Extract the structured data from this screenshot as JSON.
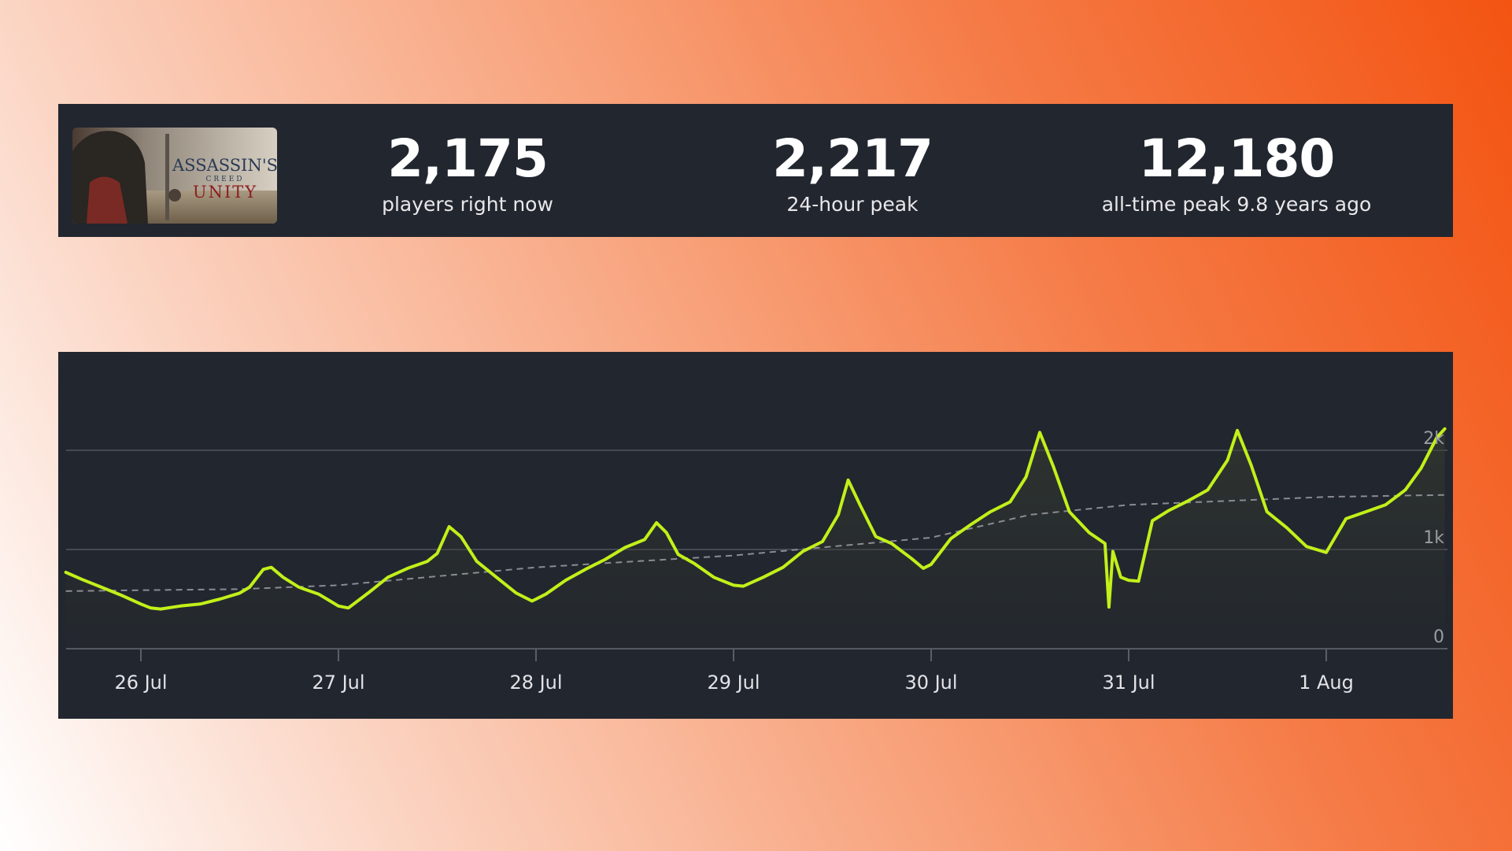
{
  "stats": {
    "game_logo_text_line1": "ASSASSIN'S",
    "game_logo_text_line2": "CREED",
    "game_logo_text_line3": "UNITY",
    "current_value": "2,175",
    "current_label": "players right now",
    "peak24_value": "2,217",
    "peak24_label": "24-hour peak",
    "alltime_value": "12,180",
    "alltime_label": "all-time peak 9.8 years ago"
  },
  "colors": {
    "panel_bg": "#22262f",
    "line": "#c2f019",
    "average_line": "#8a8c92",
    "grid": "#464a54"
  },
  "chart_data": {
    "type": "line",
    "title": "",
    "xlabel": "",
    "ylabel": "",
    "ylim": [
      0,
      2200
    ],
    "x_ticks": [
      "26 Jul",
      "27 Jul",
      "28 Jul",
      "29 Jul",
      "30 Jul",
      "31 Jul",
      "1 Aug"
    ],
    "y_ticks": [
      {
        "value": 0,
        "label": "0"
      },
      {
        "value": 1000,
        "label": "1k"
      },
      {
        "value": 2000,
        "label": "2k"
      }
    ],
    "x_range_days": [
      -0.38,
      6.6
    ],
    "series": [
      {
        "style": "main",
        "points": [
          [
            -0.38,
            770
          ],
          [
            -0.3,
            700
          ],
          [
            -0.2,
            620
          ],
          [
            -0.1,
            540
          ],
          [
            0.0,
            450
          ],
          [
            0.05,
            410
          ],
          [
            0.1,
            400
          ],
          [
            0.2,
            430
          ],
          [
            0.3,
            450
          ],
          [
            0.4,
            500
          ],
          [
            0.5,
            560
          ],
          [
            0.55,
            620
          ],
          [
            0.62,
            800
          ],
          [
            0.66,
            820
          ],
          [
            0.72,
            720
          ],
          [
            0.8,
            620
          ],
          [
            0.9,
            550
          ],
          [
            1.0,
            430
          ],
          [
            1.05,
            410
          ],
          [
            1.15,
            560
          ],
          [
            1.25,
            720
          ],
          [
            1.35,
            810
          ],
          [
            1.45,
            880
          ],
          [
            1.5,
            960
          ],
          [
            1.56,
            1230
          ],
          [
            1.62,
            1130
          ],
          [
            1.7,
            880
          ],
          [
            1.8,
            720
          ],
          [
            1.9,
            560
          ],
          [
            1.98,
            480
          ],
          [
            2.05,
            550
          ],
          [
            2.15,
            690
          ],
          [
            2.25,
            800
          ],
          [
            2.35,
            900
          ],
          [
            2.45,
            1020
          ],
          [
            2.55,
            1100
          ],
          [
            2.61,
            1270
          ],
          [
            2.66,
            1170
          ],
          [
            2.72,
            950
          ],
          [
            2.8,
            860
          ],
          [
            2.9,
            720
          ],
          [
            3.0,
            640
          ],
          [
            3.05,
            630
          ],
          [
            3.15,
            720
          ],
          [
            3.25,
            820
          ],
          [
            3.35,
            980
          ],
          [
            3.45,
            1080
          ],
          [
            3.53,
            1350
          ],
          [
            3.58,
            1700
          ],
          [
            3.64,
            1450
          ],
          [
            3.72,
            1130
          ],
          [
            3.8,
            1060
          ],
          [
            3.9,
            910
          ],
          [
            3.96,
            810
          ],
          [
            4.0,
            850
          ],
          [
            4.1,
            1110
          ],
          [
            4.2,
            1250
          ],
          [
            4.3,
            1380
          ],
          [
            4.4,
            1480
          ],
          [
            4.48,
            1730
          ],
          [
            4.55,
            2180
          ],
          [
            4.62,
            1830
          ],
          [
            4.7,
            1380
          ],
          [
            4.8,
            1170
          ],
          [
            4.88,
            1060
          ],
          [
            4.9,
            420
          ],
          [
            4.92,
            980
          ],
          [
            4.96,
            720
          ],
          [
            5.0,
            690
          ],
          [
            5.05,
            680
          ],
          [
            5.12,
            1290
          ],
          [
            5.2,
            1390
          ],
          [
            5.3,
            1490
          ],
          [
            5.4,
            1600
          ],
          [
            5.5,
            1900
          ],
          [
            5.55,
            2200
          ],
          [
            5.62,
            1850
          ],
          [
            5.7,
            1380
          ],
          [
            5.8,
            1220
          ],
          [
            5.9,
            1030
          ],
          [
            6.0,
            970
          ],
          [
            6.1,
            1310
          ],
          [
            6.2,
            1380
          ],
          [
            6.3,
            1450
          ],
          [
            6.4,
            1600
          ],
          [
            6.48,
            1820
          ],
          [
            6.56,
            2130
          ],
          [
            6.6,
            2217
          ]
        ]
      },
      {
        "style": "average",
        "points": [
          [
            -0.38,
            580
          ],
          [
            0.0,
            590
          ],
          [
            0.5,
            600
          ],
          [
            1.0,
            640
          ],
          [
            1.5,
            730
          ],
          [
            2.0,
            820
          ],
          [
            2.5,
            880
          ],
          [
            3.0,
            940
          ],
          [
            3.5,
            1030
          ],
          [
            4.0,
            1120
          ],
          [
            4.5,
            1350
          ],
          [
            5.0,
            1450
          ],
          [
            5.5,
            1490
          ],
          [
            6.0,
            1530
          ],
          [
            6.6,
            1550
          ]
        ]
      }
    ]
  }
}
